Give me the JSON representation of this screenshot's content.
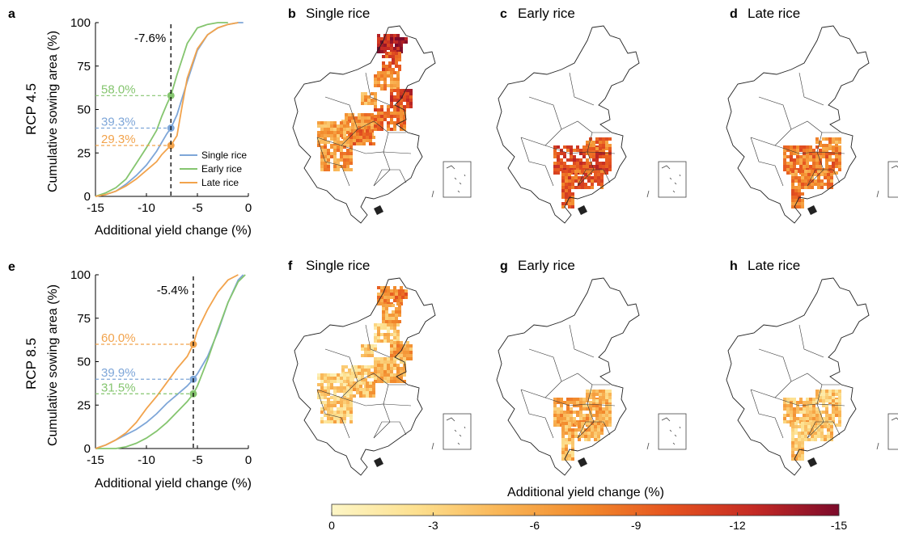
{
  "colors": {
    "single": "#7ea6d8",
    "early": "#85c56f",
    "late": "#f2a34c",
    "colorbar": [
      "#fdf6c6",
      "#fde08f",
      "#f9b556",
      "#f28a2c",
      "#e5531f",
      "#c42a24",
      "#7c0a2b"
    ]
  },
  "figure": {
    "colorbar_title": "Additional yield change (%)",
    "colorbar_ticks": [
      "0",
      "-3",
      "-6",
      "-9",
      "-12",
      "-15"
    ]
  },
  "rows": [
    {
      "row_label": "RCP 4.5",
      "chart": {
        "panel": "a",
        "xlabel": "Additional yield change (%)",
        "ylabel": "Cumulative sowing area (%)",
        "median_label": "-7.6%",
        "legend": [
          "Single rice",
          "Early rice",
          "Late rice"
        ]
      },
      "maps": [
        {
          "panel": "b",
          "title": "Single rice"
        },
        {
          "panel": "c",
          "title": "Early rice"
        },
        {
          "panel": "d",
          "title": "Late rice"
        }
      ]
    },
    {
      "row_label": "RCP 8.5",
      "chart": {
        "panel": "e",
        "xlabel": "Additional yield change (%)",
        "ylabel": "Cumulative sowing area (%)",
        "median_label": "-5.4%"
      },
      "maps": [
        {
          "panel": "f",
          "title": "Single rice"
        },
        {
          "panel": "g",
          "title": "Early rice"
        },
        {
          "panel": "h",
          "title": "Late rice"
        }
      ]
    }
  ],
  "chart_data": [
    {
      "type": "line",
      "xlabel": "Additional yield change (%)",
      "ylabel": "Cumulative sowing area (%)",
      "xlim": [
        -15,
        0
      ],
      "ylim": [
        0,
        100
      ],
      "xticks": [
        "-15",
        "-10",
        "-5",
        "0"
      ],
      "yticks": [
        "0",
        "25",
        "50",
        "75",
        "100"
      ],
      "vline_x": -7.6,
      "vline_label": "-7.6%",
      "series": [
        {
          "name": "Single rice",
          "color": "#7ea6d8",
          "x": [
            -15,
            -14,
            -13,
            -12,
            -11,
            -10,
            -9,
            -8.5,
            -8,
            -7.6,
            -7,
            -6,
            -5,
            -4,
            -3,
            -2,
            -1,
            -0.5
          ],
          "y": [
            0,
            1,
            3,
            7,
            12,
            18,
            26,
            31,
            36,
            39.3,
            47,
            66,
            84,
            93,
            97,
            99,
            100,
            100
          ],
          "marker_y": 39.3,
          "label": "39.3%"
        },
        {
          "name": "Early rice",
          "color": "#85c56f",
          "x": [
            -15,
            -14,
            -13,
            -12,
            -11,
            -10,
            -9,
            -8.5,
            -8,
            -7.6,
            -7,
            -6,
            -5,
            -4,
            -3,
            -2
          ],
          "y": [
            0,
            2,
            5,
            10,
            19,
            28,
            38,
            46,
            53,
            58.0,
            70,
            88,
            97,
            99,
            100,
            100
          ],
          "marker_y": 58.0,
          "label": "58.0%"
        },
        {
          "name": "Late rice",
          "color": "#f2a34c",
          "x": [
            -15,
            -14,
            -13,
            -12,
            -11,
            -10,
            -9,
            -8.5,
            -8,
            -7.6,
            -7,
            -6.5,
            -6,
            -5,
            -4,
            -3,
            -2,
            -1
          ],
          "y": [
            0,
            1,
            3,
            6,
            10,
            15,
            20,
            24,
            27,
            29.3,
            35,
            52,
            68,
            85,
            93,
            97,
            99,
            100
          ],
          "marker_y": 29.3,
          "label": "29.3%"
        }
      ]
    },
    {
      "type": "line",
      "xlabel": "Additional yield change (%)",
      "ylabel": "Cumulative sowing area (%)",
      "xlim": [
        -15,
        0
      ],
      "ylim": [
        0,
        100
      ],
      "xticks": [
        "-15",
        "-10",
        "-5",
        "0"
      ],
      "yticks": [
        "0",
        "25",
        "50",
        "75",
        "100"
      ],
      "vline_x": -5.4,
      "vline_label": "-5.4%",
      "series": [
        {
          "name": "Single rice",
          "color": "#7ea6d8",
          "x": [
            -15,
            -14,
            -13,
            -12,
            -11,
            -10,
            -9,
            -8,
            -7,
            -6,
            -5.4,
            -5,
            -4,
            -3,
            -2,
            -1,
            -0.5
          ],
          "y": [
            0,
            2,
            5,
            8,
            11,
            15,
            20,
            26,
            31,
            36,
            39.9,
            43,
            53,
            67,
            84,
            97,
            100
          ],
          "marker_y": 39.9,
          "label": "39.9%"
        },
        {
          "name": "Early rice",
          "color": "#85c56f",
          "x": [
            -15,
            -13,
            -12,
            -11,
            -10,
            -9,
            -8,
            -7,
            -6,
            -5.4,
            -5,
            -4,
            -3,
            -2,
            -1,
            -0.3
          ],
          "y": [
            0,
            0,
            1,
            3,
            6,
            10,
            15,
            21,
            27,
            31.5,
            36,
            51,
            68,
            84,
            96,
            100
          ],
          "marker_y": 31.5,
          "label": "31.5%"
        },
        {
          "name": "Late rice",
          "color": "#f2a34c",
          "x": [
            -15,
            -14,
            -13,
            -12,
            -11,
            -10,
            -9,
            -8,
            -7,
            -6,
            -5.4,
            -5,
            -4,
            -3,
            -2,
            -1
          ],
          "y": [
            0,
            2,
            5,
            9,
            15,
            23,
            30,
            38,
            46,
            53,
            60.0,
            68,
            80,
            90,
            97,
            100
          ],
          "marker_y": 60.0,
          "label": "60.0%"
        }
      ]
    }
  ]
}
